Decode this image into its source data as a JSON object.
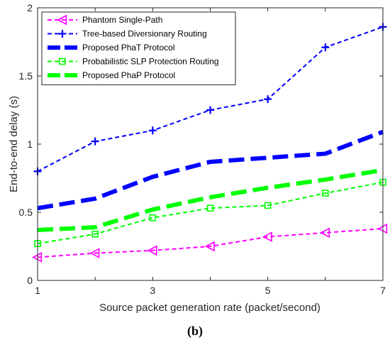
{
  "caption": "(b)",
  "chart_data": {
    "type": "line",
    "xlabel": "Source packet generation rate (packet/second)",
    "ylabel": "End-to-end delay (s)",
    "xlim": [
      1,
      7
    ],
    "ylim": [
      0,
      2
    ],
    "xticks": [
      "1",
      "3",
      "5",
      "7"
    ],
    "yticks": [
      "0",
      "0.5",
      "1",
      "1.5",
      "2"
    ],
    "grid": false,
    "legend_position": "top-left",
    "x": [
      1,
      2,
      3,
      4,
      5,
      6,
      7
    ],
    "series": [
      {
        "name": "Phantom Single-Path",
        "values": [
          0.17,
          0.2,
          0.22,
          0.25,
          0.32,
          0.35,
          0.38
        ],
        "color": "#ff00ff",
        "marker": "triangle-left",
        "line": "dashed"
      },
      {
        "name": "Tree-based Diversionary Routing",
        "values": [
          0.8,
          1.02,
          1.1,
          1.25,
          1.33,
          1.71,
          1.86
        ],
        "color": "#0000ff",
        "marker": "plus",
        "line": "dashed"
      },
      {
        "name": "Proposed  PhaT Protocol",
        "values": [
          0.53,
          0.6,
          0.76,
          0.87,
          0.9,
          0.93,
          1.09
        ],
        "color": "#0000ff",
        "marker": "none",
        "line": "thick-dashed"
      },
      {
        "name": "Probabilistic SLP Protection Routing",
        "values": [
          0.27,
          0.34,
          0.46,
          0.53,
          0.55,
          0.64,
          0.72
        ],
        "color": "#00ff00",
        "marker": "square",
        "line": "dashed"
      },
      {
        "name": "Proposed  PhaP Protocol",
        "values": [
          0.37,
          0.39,
          0.52,
          0.61,
          0.68,
          0.74,
          0.81
        ],
        "color": "#00ff00",
        "marker": "none",
        "line": "thick-dashed"
      }
    ]
  }
}
